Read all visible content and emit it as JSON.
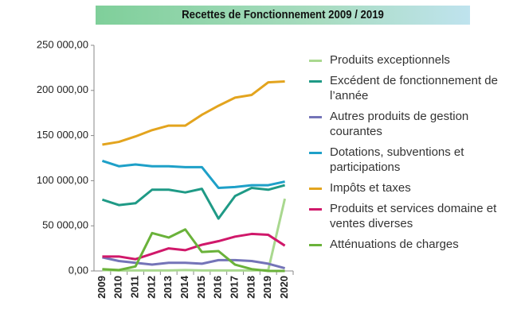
{
  "chart_data": {
    "type": "line",
    "title": "Recettes de Fonctionnement 2009 / 2019",
    "categories": [
      "2009",
      "2010",
      "2011",
      "2012",
      "2013",
      "2014",
      "2015",
      "2016",
      "2017",
      "2018",
      "2019",
      "2020"
    ],
    "ylim": [
      0,
      250000
    ],
    "yticks": [
      {
        "value": 0,
        "label": "0,00"
      },
      {
        "value": 50000,
        "label": "50 000,00"
      },
      {
        "value": 100000,
        "label": "100 000,00"
      },
      {
        "value": 150000,
        "label": "150 000,00"
      },
      {
        "value": 200000,
        "label": "200 000,00"
      },
      {
        "value": 250000,
        "label": "250 000,00"
      }
    ],
    "series": [
      {
        "name": "Produits exceptionnels",
        "color": "#a9d88f",
        "values": [
          1000,
          500,
          500,
          500,
          500,
          1000,
          500,
          500,
          500,
          500,
          1000,
          80000
        ]
      },
      {
        "name": "Excédent de fonctionnement de l’année",
        "color": "#1f9a86",
        "values": [
          79000,
          73000,
          75000,
          90000,
          90000,
          87000,
          91000,
          58000,
          83000,
          92000,
          90000,
          95000
        ]
      },
      {
        "name": "Autres produits de gestion courantes",
        "color": "#7474b8",
        "values": [
          15000,
          11000,
          9000,
          7000,
          9000,
          9000,
          8000,
          12000,
          12000,
          11000,
          8000,
          3000
        ]
      },
      {
        "name": "Dotations, subventions et participations",
        "color": "#1ea0c8",
        "values": [
          122000,
          116000,
          118000,
          116000,
          116000,
          115000,
          115000,
          92000,
          93000,
          95000,
          95000,
          99000
        ]
      },
      {
        "name": "Impôts et taxes",
        "color": "#e3a41e",
        "values": [
          140000,
          143000,
          149000,
          156000,
          161000,
          161000,
          173000,
          183000,
          192000,
          195000,
          209000,
          210000
        ]
      },
      {
        "name": "Produits et services domaine et ventes diverses",
        "color": "#d0186a",
        "values": [
          16000,
          16000,
          13000,
          19000,
          25000,
          23000,
          29000,
          33000,
          38000,
          41000,
          40000,
          28000
        ]
      },
      {
        "name": "Atténuations de charges",
        "color": "#6ab23a",
        "values": [
          2000,
          1000,
          5000,
          42000,
          37000,
          46000,
          21000,
          22000,
          7000,
          2000,
          0,
          0
        ]
      }
    ]
  }
}
